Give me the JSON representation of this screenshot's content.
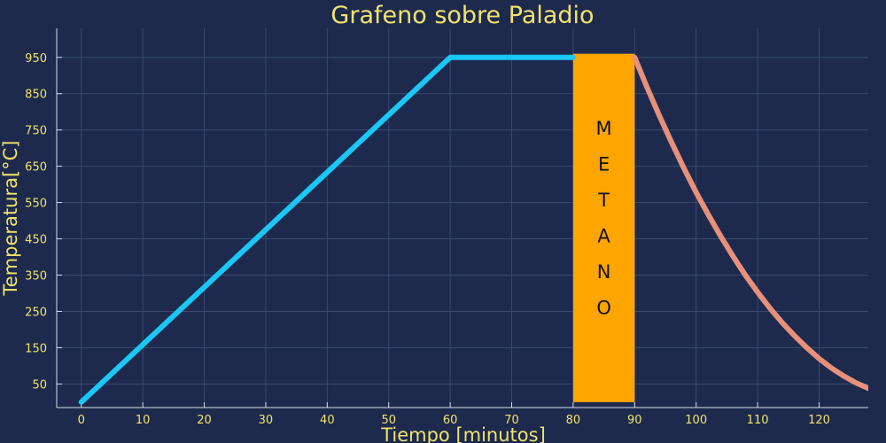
{
  "chart_data": {
    "type": "line",
    "title": "Grafeno sobre Paladio",
    "xlabel": "Tiempo [minutos]",
    "ylabel": "Temperatura[°C]",
    "xlim": [
      -4,
      128
    ],
    "ylim": [
      -15,
      1030
    ],
    "xticks": [
      0,
      10,
      20,
      30,
      40,
      50,
      60,
      70,
      80,
      90,
      100,
      110,
      120
    ],
    "yticks": [
      50,
      150,
      250,
      350,
      450,
      550,
      650,
      750,
      850,
      950
    ],
    "grid": true,
    "series": [
      {
        "color": "#1ac8f5",
        "points": [
          [
            0,
            0
          ],
          [
            60,
            950
          ],
          [
            80,
            950
          ]
        ]
      },
      {
        "color": "#e8907a",
        "points": [
          [
            90,
            950
          ],
          [
            92,
            868
          ],
          [
            94,
            790
          ],
          [
            96,
            716
          ],
          [
            98,
            645
          ],
          [
            100,
            578
          ],
          [
            102,
            516
          ],
          [
            104,
            457
          ],
          [
            106,
            402
          ],
          [
            108,
            350
          ],
          [
            110,
            303
          ],
          [
            112,
            259
          ],
          [
            114,
            219
          ],
          [
            116,
            183
          ],
          [
            118,
            150
          ],
          [
            120,
            120
          ],
          [
            122,
            94
          ],
          [
            124,
            72
          ],
          [
            126,
            53
          ],
          [
            128,
            38
          ],
          [
            130,
            25
          ]
        ]
      }
    ],
    "band": {
      "x0": 80,
      "x1": 90,
      "y0": 0,
      "y1": 960,
      "color": "#ffa500",
      "label": [
        "M",
        "E",
        "T",
        "A",
        "N",
        "O"
      ]
    }
  }
}
